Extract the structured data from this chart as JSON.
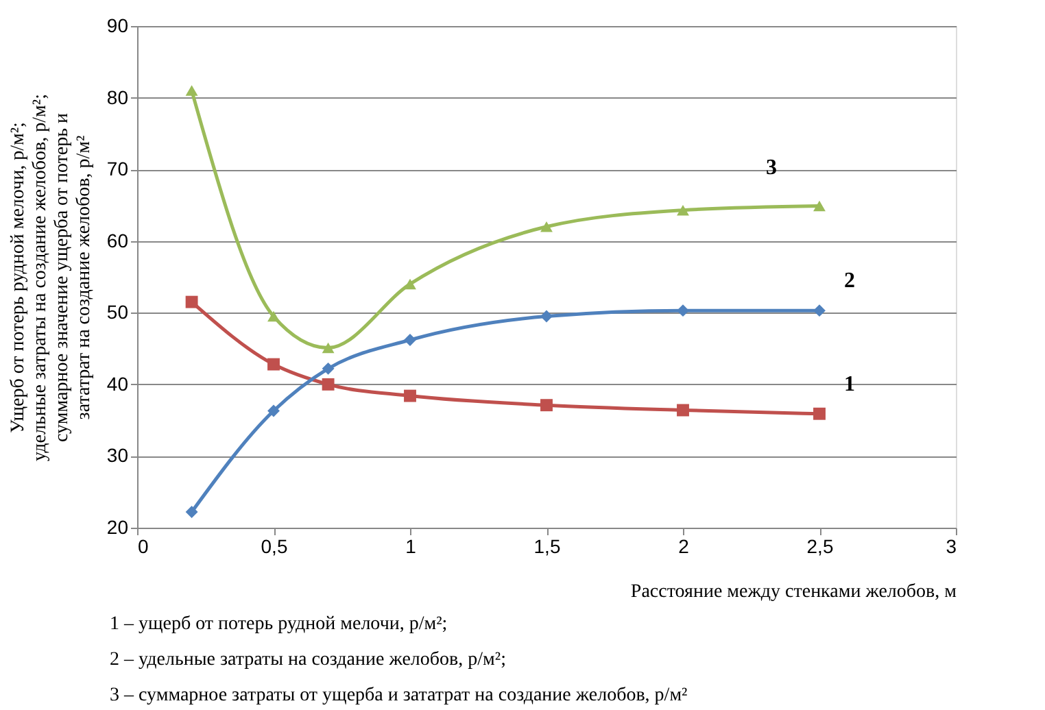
{
  "chart_data": {
    "type": "line",
    "xlabel": "Расстояние между стенками желобов, м",
    "ylabel": "Ущерб от потерь рудной мелочи, р/м²;\nудельные затраты на создание желобов, р/м²;\nсуммарное значение ущерба от потерь и\nзататрат на создание желобов, р/м²",
    "x": [
      0.2,
      0.5,
      0.7,
      1,
      1.5,
      2,
      2.5
    ],
    "series": [
      {
        "name": "1",
        "color": "#c0504d",
        "marker": "square",
        "values": [
          51.5,
          42.8,
          40,
          38.4,
          37.1,
          36.4,
          35.9
        ]
      },
      {
        "name": "2",
        "color": "#4f81bd",
        "marker": "diamond",
        "values": [
          22.2,
          36.3,
          42.2,
          46.2,
          49.5,
          50.3,
          50.3
        ]
      },
      {
        "name": "3",
        "color": "#9bbb59",
        "marker": "triangle",
        "values": [
          81,
          49.5,
          45.1,
          54,
          62,
          64.3,
          64.9
        ]
      }
    ],
    "xlim": [
      0,
      3
    ],
    "xticks": [
      {
        "value": 0,
        "label": "0"
      },
      {
        "value": 0.5,
        "label": "0,5"
      },
      {
        "value": 1,
        "label": "1"
      },
      {
        "value": 1.5,
        "label": "1,5"
      },
      {
        "value": 2,
        "label": "2"
      },
      {
        "value": 2.5,
        "label": "2,5"
      },
      {
        "value": 3,
        "label": "3"
      }
    ],
    "ylim": [
      20,
      90
    ],
    "yticks": [
      20,
      30,
      40,
      50,
      60,
      70,
      80,
      90
    ],
    "grid": "y",
    "annotations": [
      "1 – ущерб от потерь рудной мелочи, р/м²;",
      "2 – удельные затраты на создание желобов, р/м²;",
      "3 – суммарное затраты от ущерба и зататрат на создание желобов, р/м²"
    ]
  }
}
